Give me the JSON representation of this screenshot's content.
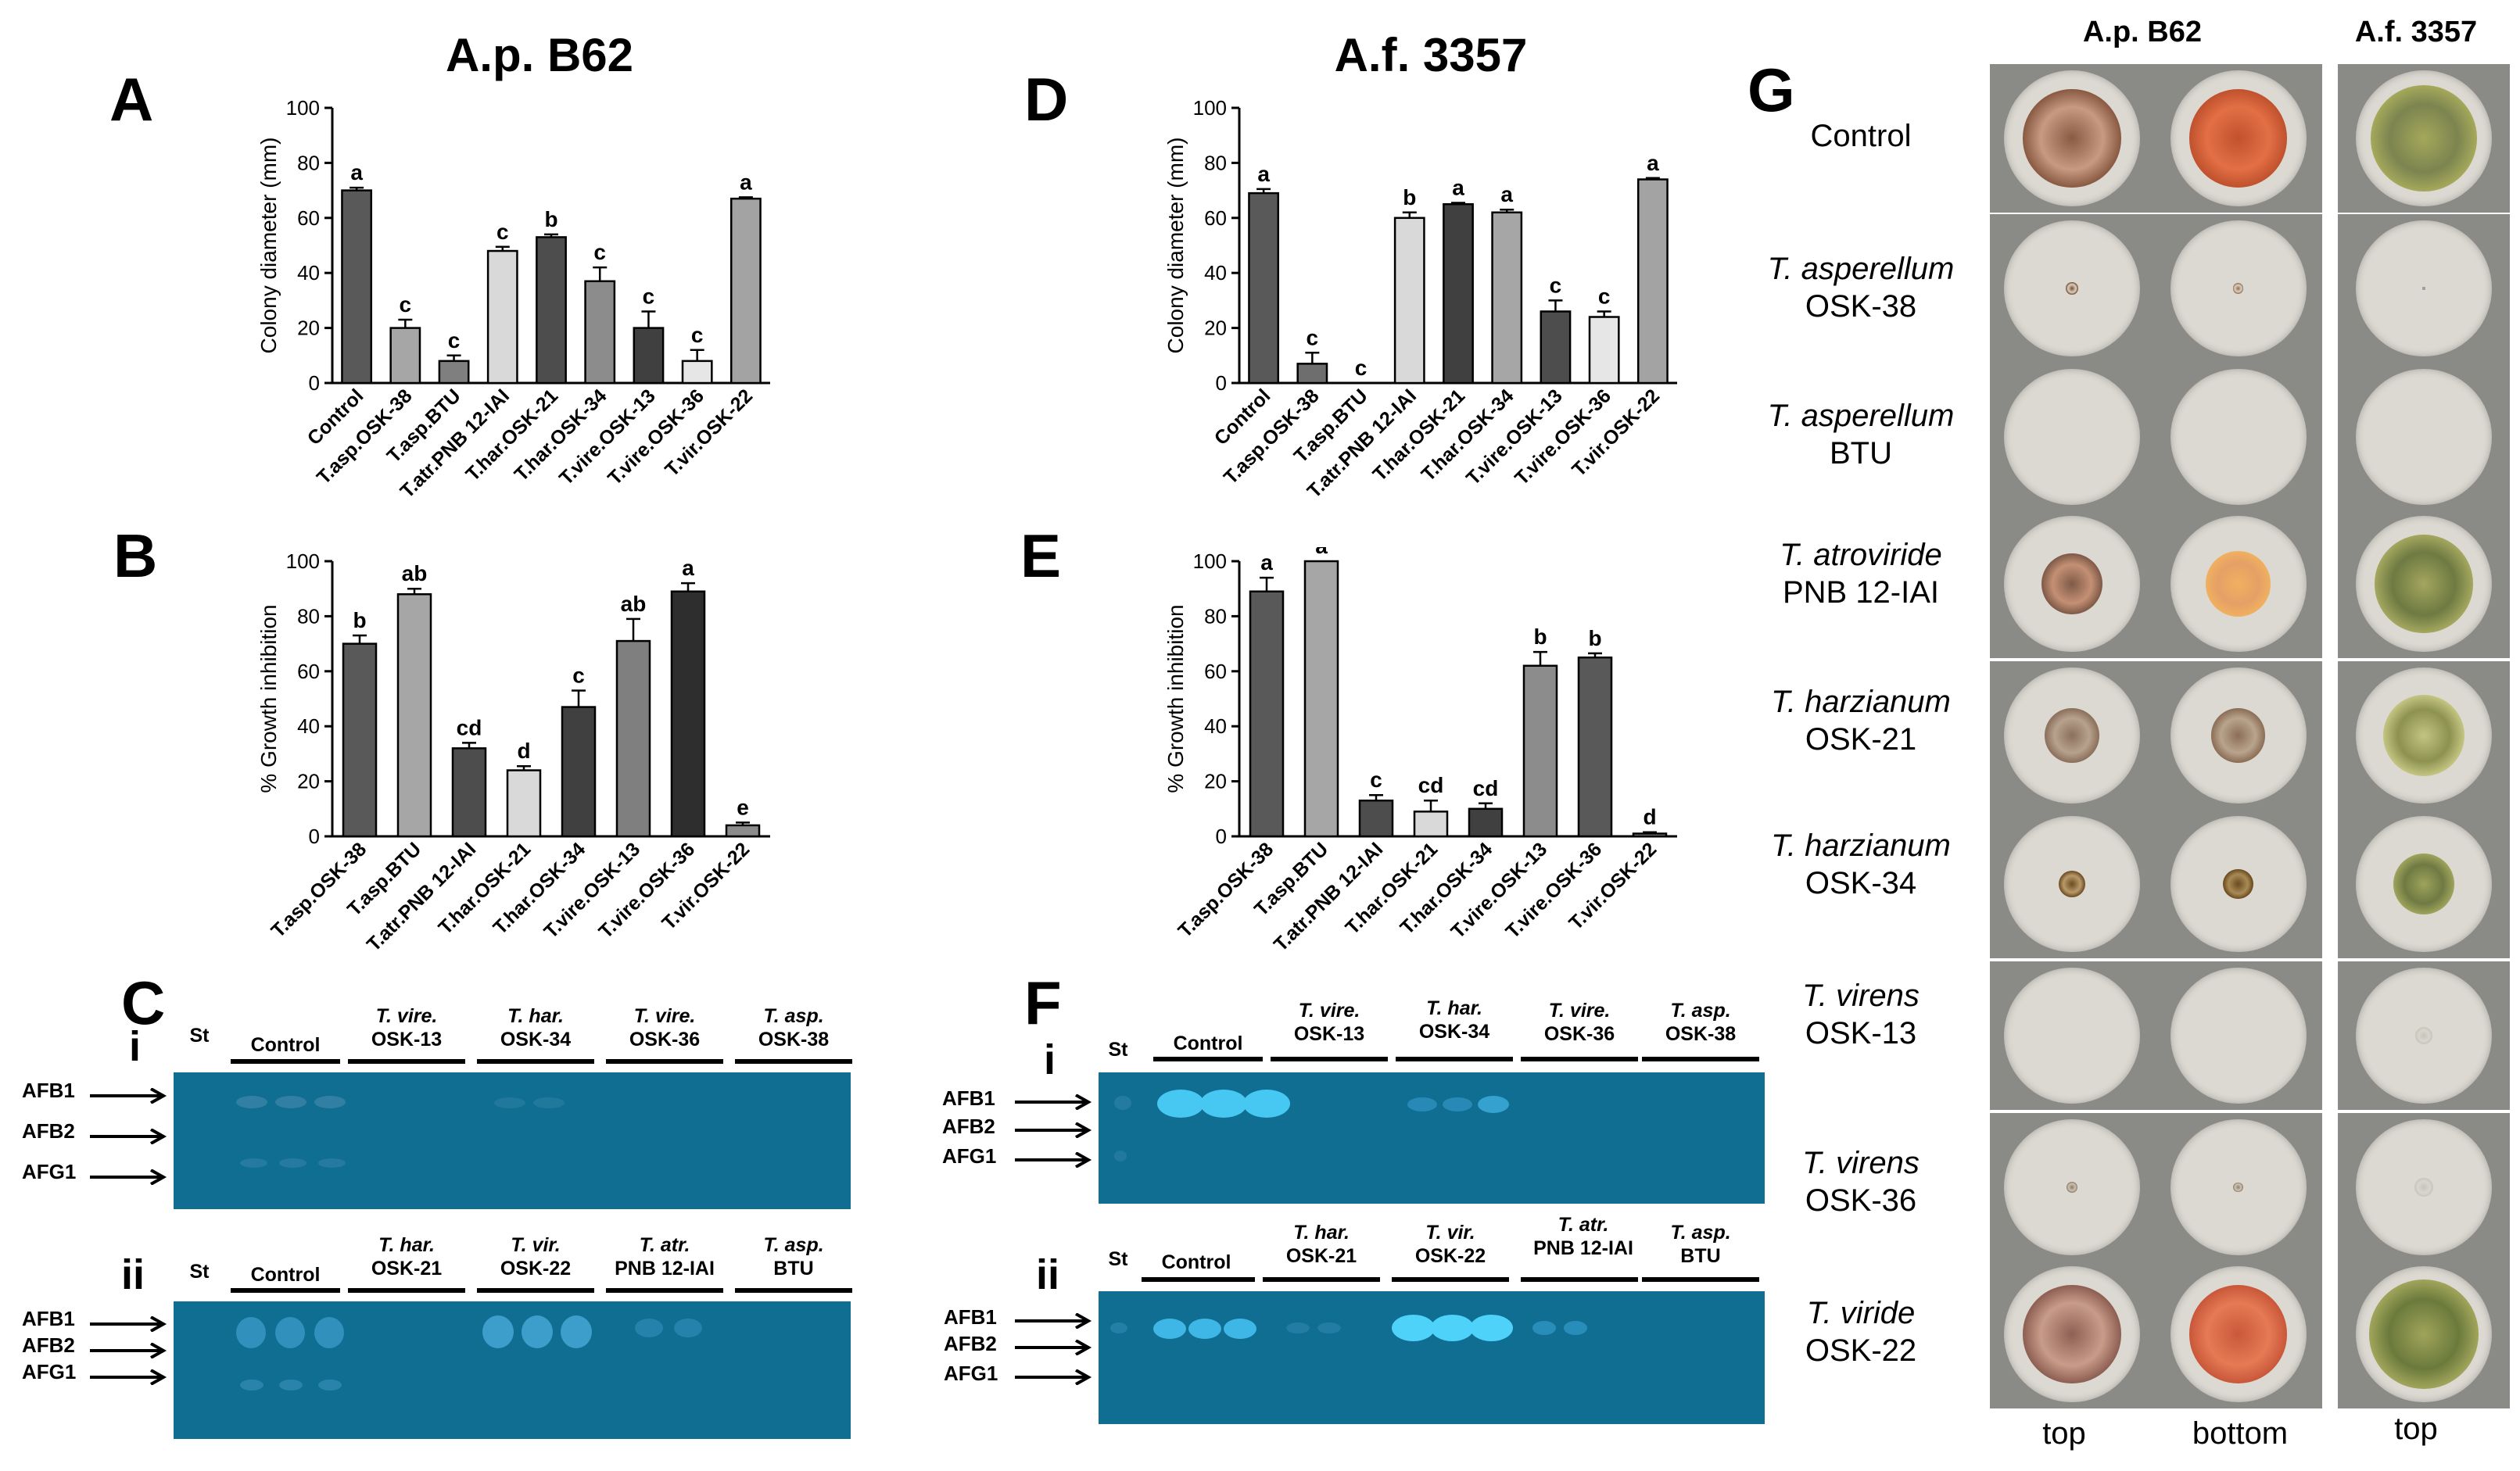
{
  "titles": {
    "left": "A.p. B62",
    "middle": "A.f. 3357"
  },
  "panels": {
    "A": "A",
    "B": "B",
    "C": "C",
    "D": "D",
    "E": "E",
    "F": "F",
    "G": "G"
  },
  "chart_data": [
    {
      "id": "A",
      "type": "bar",
      "title": "A.p. B62",
      "ylabel": "Colony diameter (mm)",
      "ylim": [
        0,
        100
      ],
      "yticks": [
        0,
        20,
        40,
        60,
        80,
        100
      ],
      "categories": [
        "Control",
        "T.asp.OSK-38",
        "T.asp.BTU",
        "T.atr.PNB 12-IAI",
        "T.har.OSK-21",
        "T.har.OSK-34",
        "T.vire.OSK-13",
        "T.vire.OSK-36",
        "T.vir.OSK-22"
      ],
      "values": [
        70,
        20,
        8,
        48,
        53,
        37,
        20,
        8,
        67
      ],
      "errors": [
        1,
        3,
        2,
        1.5,
        1,
        5,
        6,
        4,
        0.5
      ],
      "letters": [
        "a",
        "c",
        "c",
        "c",
        "b",
        "c",
        "c",
        "c",
        "a"
      ],
      "colors": [
        "#595959",
        "#a6a6a6",
        "#7f7f7f",
        "#d9d9d9",
        "#4d4d4d",
        "#8c8c8c",
        "#404040",
        "#e6e6e6",
        "#a3a3a3"
      ]
    },
    {
      "id": "B",
      "type": "bar",
      "ylabel": "% Growth inhibition",
      "ylim": [
        0,
        100
      ],
      "yticks": [
        0,
        20,
        40,
        60,
        80,
        100
      ],
      "categories": [
        "T.asp.OSK-38",
        "T.asp.BTU",
        "T.atr.PNB 12-IAI",
        "T.har.OSK-21",
        "T.har.OSK-34",
        "T.vire.OSK-13",
        "T.vire.OSK-36",
        "T.vir.OSK-22"
      ],
      "values": [
        70,
        88,
        32,
        24,
        47,
        71,
        89,
        4
      ],
      "errors": [
        3,
        2,
        2,
        1.5,
        6,
        8,
        3,
        1
      ],
      "letters": [
        "b",
        "ab",
        "cd",
        "d",
        "c",
        "ab",
        "a",
        "e"
      ],
      "colors": [
        "#595959",
        "#a6a6a6",
        "#4d4d4d",
        "#d9d9d9",
        "#404040",
        "#7f7f7f",
        "#2e2e2e",
        "#8c8c8c"
      ]
    },
    {
      "id": "D",
      "type": "bar",
      "title": "A.f. 3357",
      "ylabel": "Colony diameter (mm)",
      "ylim": [
        0,
        100
      ],
      "yticks": [
        0,
        20,
        40,
        60,
        80,
        100
      ],
      "categories": [
        "Control",
        "T.asp.OSK-38",
        "T.asp.BTU",
        "T.atr.PNB 12-IAI",
        "T.har.OSK-21",
        "T.har.OSK-34",
        "T.vire.OSK-13",
        "T.vire.OSK-36",
        "T.vir.OSK-22"
      ],
      "values": [
        69,
        7,
        0,
        60,
        65,
        62,
        26,
        24,
        74
      ],
      "errors": [
        1.5,
        4,
        0,
        2,
        0.5,
        1,
        4,
        2,
        0.5
      ],
      "letters": [
        "a",
        "c",
        "c",
        "b",
        "a",
        "a",
        "c",
        "c",
        "a"
      ],
      "colors": [
        "#595959",
        "#6e6e6e",
        "#7f7f7f",
        "#d9d9d9",
        "#404040",
        "#a6a6a6",
        "#4d4d4d",
        "#e6e6e6",
        "#a3a3a3"
      ]
    },
    {
      "id": "E",
      "type": "bar",
      "ylabel": "% Growth inhibition",
      "ylim": [
        0,
        100
      ],
      "yticks": [
        0,
        20,
        40,
        60,
        80,
        100
      ],
      "categories": [
        "T.asp.OSK-38",
        "T.asp.BTU",
        "T.atr.PNB 12-IAI",
        "T.har.OSK-21",
        "T.har.OSK-34",
        "T.vire.OSK-13",
        "T.vire.OSK-36",
        "T.vir.OSK-22"
      ],
      "values": [
        89,
        100,
        13,
        9,
        10,
        62,
        65,
        1
      ],
      "errors": [
        5,
        0,
        2,
        4,
        2,
        5,
        1.5,
        0.5
      ],
      "letters": [
        "a",
        "a",
        "c",
        "cd",
        "cd",
        "b",
        "b",
        "d"
      ],
      "colors": [
        "#595959",
        "#a6a6a6",
        "#4d4d4d",
        "#d9d9d9",
        "#404040",
        "#8c8c8c",
        "#595959",
        "#8c8c8c"
      ]
    }
  ],
  "gels": {
    "bands": [
      "AFB1",
      "AFB2",
      "AFG1"
    ],
    "C": {
      "i": {
        "roman": "i",
        "st": "St",
        "lanes": [
          {
            "line1": "Control",
            "line2": "",
            "italic": false
          },
          {
            "line1": "T. vire.",
            "line2": "OSK-13",
            "italic": true
          },
          {
            "line1": "T. har.",
            "line2": "OSK-34",
            "italic": true
          },
          {
            "line1": "T. vire.",
            "line2": "OSK-36",
            "italic": true
          },
          {
            "line1": "T. asp.",
            "line2": "OSK-38",
            "italic": true
          }
        ]
      },
      "ii": {
        "roman": "ii",
        "st": "St",
        "lanes": [
          {
            "line1": "Control",
            "line2": "",
            "italic": false
          },
          {
            "line1": "T. har.",
            "line2": "OSK-21",
            "italic": true
          },
          {
            "line1": "T. vir.",
            "line2": "OSK-22",
            "italic": true
          },
          {
            "line1": "T. atr.",
            "line2": "PNB 12-IAI",
            "italic": true
          },
          {
            "line1": "T. asp.",
            "line2": "BTU",
            "italic": true
          }
        ]
      }
    },
    "F": {
      "i": {
        "roman": "i",
        "st": "St",
        "lanes": [
          {
            "line1": "Control",
            "line2": "",
            "italic": false
          },
          {
            "line1": "T. vire.",
            "line2": "OSK-13",
            "italic": true
          },
          {
            "line1": "T. har.",
            "line2": "OSK-34",
            "italic": true
          },
          {
            "line1": "T. vire.",
            "line2": "OSK-36",
            "italic": true
          },
          {
            "line1": "T. asp.",
            "line2": "OSK-38",
            "italic": true
          }
        ]
      },
      "ii": {
        "roman": "ii",
        "st": "St",
        "lanes": [
          {
            "line1": "Control",
            "line2": "",
            "italic": false
          },
          {
            "line1": "T. har.",
            "line2": "OSK-21",
            "italic": true
          },
          {
            "line1": "T. vir.",
            "line2": "OSK-22",
            "italic": true
          },
          {
            "line1": "T. atr.",
            "line2": "PNB 12-IAI",
            "italic": true
          },
          {
            "line1": "T. asp.",
            "line2": "BTU",
            "italic": true
          }
        ]
      }
    }
  },
  "plates": {
    "col_heads": {
      "ap": "A.p. B62",
      "af": "A.f. 3357"
    },
    "col_labels": {
      "top1": "top",
      "bottom": "bottom",
      "top2": "top"
    },
    "rows": [
      {
        "sp": "",
        "strain": "Control"
      },
      {
        "sp": "T. asperellum",
        "strain": "OSK-38"
      },
      {
        "sp": "T. asperellum",
        "strain": "BTU"
      },
      {
        "sp": "T. atroviride",
        "strain": "PNB 12-IAI"
      },
      {
        "sp": "T. harzianum",
        "strain": "OSK-21"
      },
      {
        "sp": "T. harzianum",
        "strain": "OSK-34"
      },
      {
        "sp": "T. virens",
        "strain": "OSK-13"
      },
      {
        "sp": "T. virens",
        "strain": "OSK-36"
      },
      {
        "sp": "T. viride",
        "strain": "OSK-22"
      }
    ]
  }
}
